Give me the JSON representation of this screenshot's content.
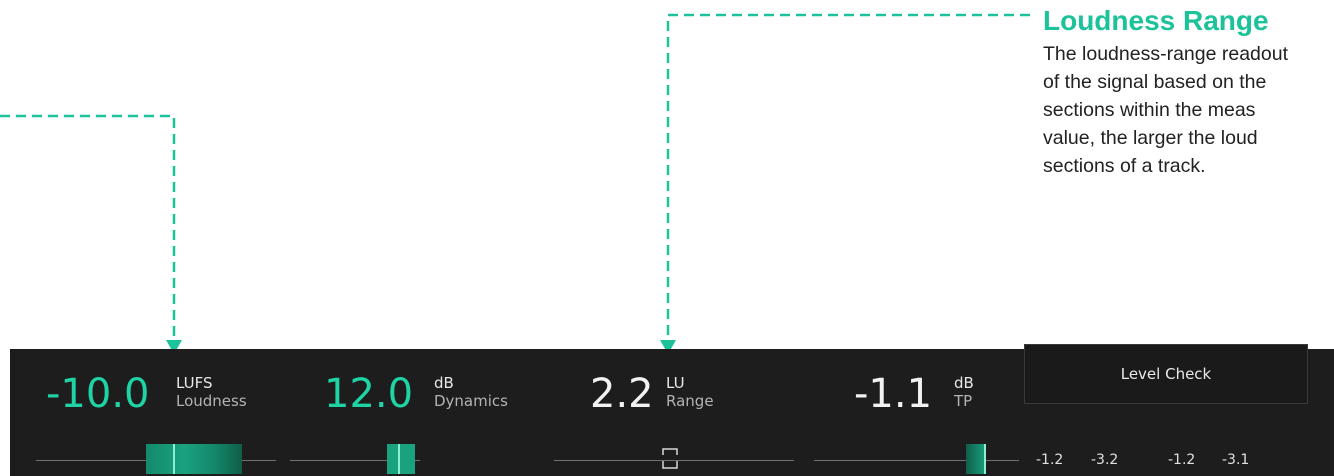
{
  "annotation": {
    "title": "Loudness Range",
    "body_lines": [
      "The loudness-range readout",
      "of the signal based on the",
      "sections within the meas",
      "value, the larger the loud",
      "sections of a track."
    ]
  },
  "meters": {
    "loudness": {
      "value": "-10.0",
      "unit": "LUFS",
      "label": "Loudness"
    },
    "dynamics": {
      "value": "12.0",
      "unit": "dB",
      "label": "Dynamics"
    },
    "range": {
      "value": "2.2",
      "unit": "LU",
      "label": "Range"
    },
    "true_peak": {
      "value": "-1.1",
      "unit": "dB",
      "label": "TP"
    }
  },
  "level_check": {
    "button_label": "Level Check",
    "values": [
      "-1.2",
      "-3.2",
      "-1.2",
      "-3.1"
    ]
  },
  "colors": {
    "accent": "#1cc39a",
    "meter_value_teal": "#1fd3a4",
    "strip_background": "#1d1d1d"
  }
}
